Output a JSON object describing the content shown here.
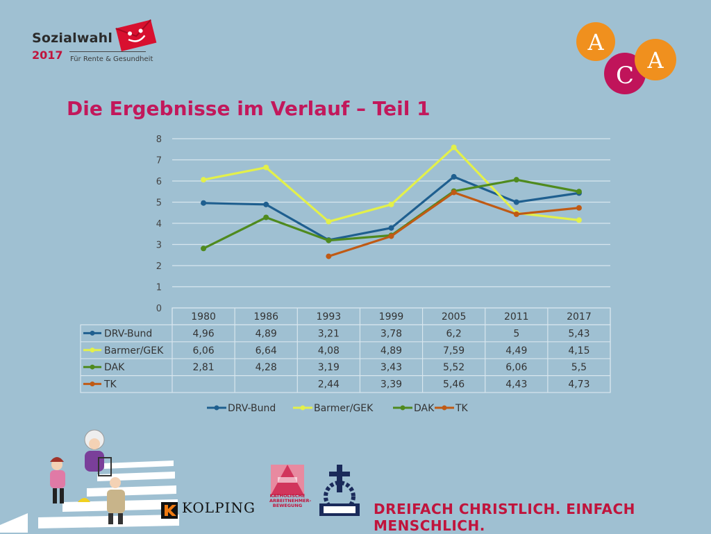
{
  "brand": {
    "title": "Sozialwahl",
    "year": "2017",
    "subtitle": "Für Rente & Gesundheit"
  },
  "corner_logo": {
    "letters": [
      "A",
      "C",
      "A"
    ]
  },
  "page_title": "Die Ergebnisse im Verlauf – Teil 1",
  "colors": {
    "background": "#9fc0d2",
    "title": "#c2185b",
    "DRV-Bund": "#1f5f8f",
    "Barmer/GEK": "#e3f04a",
    "DAK": "#4f8a1e",
    "TK": "#c05a14"
  },
  "chart_data": {
    "type": "line",
    "title": "",
    "xlabel": "",
    "ylabel": "",
    "ylim": [
      0,
      8
    ],
    "yticks": [
      0,
      1,
      2,
      3,
      4,
      5,
      6,
      7,
      8
    ],
    "grid": true,
    "legend": "bottom",
    "categories": [
      "1980",
      "1986",
      "1993",
      "1999",
      "2005",
      "2011",
      "2017"
    ],
    "series": [
      {
        "name": "DRV-Bund",
        "values": [
          4.96,
          4.89,
          3.21,
          3.78,
          6.2,
          5,
          5.43
        ],
        "labels": [
          "4,96",
          "4,89",
          "3,21",
          "3,78",
          "6,2",
          "5",
          "5,43"
        ]
      },
      {
        "name": "Barmer/GEK",
        "values": [
          6.06,
          6.64,
          4.08,
          4.89,
          7.59,
          4.49,
          4.15
        ],
        "labels": [
          "6,06",
          "6,64",
          "4,08",
          "4,89",
          "7,59",
          "4,49",
          "4,15"
        ]
      },
      {
        "name": "DAK",
        "values": [
          2.81,
          4.28,
          3.19,
          3.43,
          5.52,
          6.06,
          5.5
        ],
        "labels": [
          "2,81",
          "4,28",
          "3,19",
          "3,43",
          "5,52",
          "6,06",
          "5,5"
        ]
      },
      {
        "name": "TK",
        "values": [
          null,
          null,
          2.44,
          3.39,
          5.46,
          4.43,
          4.73
        ],
        "labels": [
          "",
          "",
          "2,44",
          "3,39",
          "5,46",
          "4,43",
          "4,73"
        ]
      }
    ]
  },
  "footer": {
    "kolping": "KOLPING",
    "kab": "KATHOLISCHE ARBEITNEHMER-BEWEGUNG",
    "slogan": "DREIFACH CHRISTLICH. EINFACH MENSCHLICH."
  }
}
